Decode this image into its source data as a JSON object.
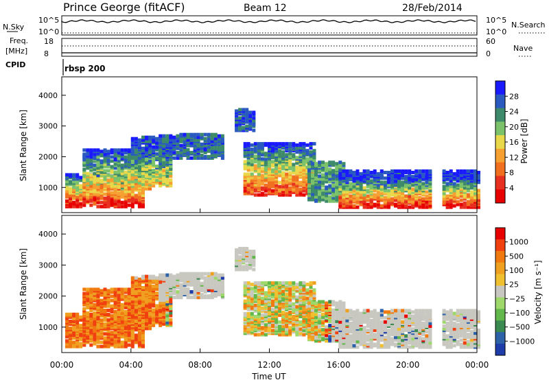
{
  "header": {
    "station": "Prince George (fitACF)",
    "beam": "Beam 12",
    "date": "28/Feb/2014"
  },
  "status_panels": {
    "nsky_label": "N.Sky",
    "nsky_ticks": [
      "10^5",
      "10^0"
    ],
    "nsky_right_ticks": [
      "10^5",
      "10^0"
    ],
    "nsearch_label": "N.Search",
    "freq_label": "Freq.",
    "freq_unit": "[MHz]",
    "freq_ticks": [
      "18",
      "8"
    ],
    "nave_ticks": [
      "60",
      "0"
    ],
    "nave_label": "Nave",
    "cpid_label": "CPID",
    "program": "rbsp 200"
  },
  "chart_data": [
    {
      "type": "heatmap",
      "name": "power",
      "ylabel": "Slant Range [km]",
      "yticks": [
        1000,
        2000,
        3000,
        4000
      ],
      "ylim": [
        180,
        4600
      ],
      "xlabel": "Time UT",
      "xticks": [
        "00:00",
        "04:00",
        "08:00",
        "12:00",
        "16:00",
        "20:00",
        "00:00"
      ],
      "xlim": [
        0,
        24
      ],
      "colorbar": {
        "label": "Power [dB]",
        "ticks": [
          "4",
          "8",
          "12",
          "16",
          "20",
          "24",
          "28"
        ],
        "colors": [
          "#1a1aff",
          "#2a5ac0",
          "#3d8a6a",
          "#7cc26a",
          "#e8d84a",
          "#f5a030",
          "#f07020",
          "#e83020",
          "#e80000"
        ]
      }
    },
    {
      "type": "heatmap",
      "name": "velocity",
      "ylabel": "Slant Range [km]",
      "yticks": [
        1000,
        2000,
        3000,
        4000
      ],
      "ylim": [
        180,
        4600
      ],
      "xlabel": "Time UT",
      "xticks": [
        "00:00",
        "04:00",
        "08:00",
        "12:00",
        "16:00",
        "20:00",
        "00:00"
      ],
      "xlim": [
        0,
        24
      ],
      "colorbar": {
        "label": "Velocity [m s⁻¹]",
        "ticks": [
          "1000",
          "500",
          "100",
          "25",
          "−25",
          "−100",
          "−500",
          "−1000"
        ],
        "colors": [
          "#1e3caa",
          "#2e62a8",
          "#3a8a52",
          "#62b84a",
          "#9ed86a",
          "#c8c8c0",
          "#f0c030",
          "#f0a020",
          "#f07a10",
          "#f04010",
          "#e80000"
        ]
      }
    }
  ]
}
